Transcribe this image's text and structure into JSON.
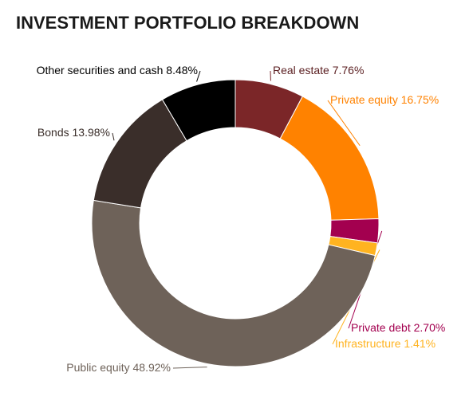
{
  "chart_data": {
    "type": "donut",
    "title": "INVESTMENT PORTFOLIO BREAKDOWN",
    "categories": [
      "Real estate",
      "Private equity",
      "Private debt",
      "Infrastructure",
      "Public equity",
      "Bonds",
      "Other securities and cash"
    ],
    "values": [
      7.76,
      16.75,
      2.7,
      1.41,
      48.92,
      13.98,
      8.48
    ],
    "value_labels": [
      "7.76%",
      "16.75%",
      "2.70%",
      "1.41%",
      "48.92%",
      "13.98%",
      "8.48%"
    ],
    "colors": [
      "#7b2628",
      "#ff8200",
      "#a3004f",
      "#ffb320",
      "#6e6259",
      "#3a2e2a",
      "#000000"
    ]
  }
}
